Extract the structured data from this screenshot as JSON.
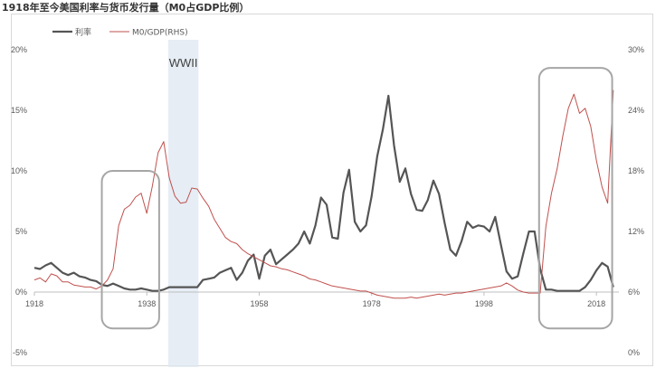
{
  "title": "1918年至今美国利率与货币发行量（M0占GDP比例）",
  "chart_data": {
    "type": "line",
    "title": "1918年至今美国利率与货币发行量（M0占GDP比例）",
    "legend": {
      "position": "top-left",
      "entries": [
        "利率",
        "M0/GDP(RHS)"
      ]
    },
    "x_ticks": [
      "1918",
      "1938",
      "1958",
      "1978",
      "1998",
      "2018"
    ],
    "xlim": [
      1918,
      2022
    ],
    "y_left": {
      "ticks": [
        "-5%",
        "0%",
        "5%",
        "10%",
        "15%",
        "20%"
      ],
      "ylim": [
        -5,
        20
      ],
      "unit": "%"
    },
    "y_right": {
      "ticks": [
        "0%",
        "6%",
        "12%",
        "18%",
        "24%",
        "30%"
      ],
      "ylim": [
        0,
        30
      ],
      "unit": "%"
    },
    "grid": false,
    "annotations": [
      {
        "type": "shaded_band",
        "label": "WWII",
        "x_range": [
          1941.8,
          1947.2
        ]
      },
      {
        "type": "rounded_box",
        "x_range": [
          1930,
          1940.2
        ],
        "y_range_left": [
          -3,
          10
        ]
      },
      {
        "type": "rounded_box",
        "x_range": [
          2007.8,
          2020.8
        ],
        "y_range_left": [
          -3,
          18.5
        ]
      }
    ],
    "series": [
      {
        "name": "利率",
        "axis": "left",
        "color": "#555555",
        "x": [
          1918,
          1919,
          1920,
          1921,
          1922,
          1923,
          1924,
          1925,
          1926,
          1927,
          1928,
          1929,
          1930,
          1931,
          1932,
          1933,
          1934,
          1935,
          1936,
          1937,
          1938,
          1939,
          1940,
          1941,
          1942,
          1943,
          1944,
          1945,
          1946,
          1947,
          1948,
          1949,
          1950,
          1951,
          1952,
          1953,
          1954,
          1955,
          1956,
          1957,
          1958,
          1959,
          1960,
          1961,
          1962,
          1963,
          1964,
          1965,
          1966,
          1967,
          1968,
          1969,
          1970,
          1971,
          1972,
          1973,
          1974,
          1975,
          1976,
          1977,
          1978,
          1979,
          1980,
          1981,
          1982,
          1983,
          1984,
          1985,
          1986,
          1987,
          1988,
          1989,
          1990,
          1991,
          1992,
          1993,
          1994,
          1995,
          1996,
          1997,
          1998,
          1999,
          2000,
          2001,
          2002,
          2003,
          2004,
          2005,
          2006,
          2007,
          2008,
          2009,
          2010,
          2011,
          2012,
          2013,
          2014,
          2015,
          2016,
          2017,
          2018,
          2019,
          2020,
          2021
        ],
        "values": [
          2.0,
          1.9,
          2.2,
          2.4,
          2.0,
          1.6,
          1.4,
          1.6,
          1.3,
          1.2,
          1.0,
          0.9,
          0.6,
          0.5,
          0.7,
          0.5,
          0.3,
          0.2,
          0.2,
          0.3,
          0.2,
          0.1,
          0.1,
          0.2,
          0.4,
          0.4,
          0.4,
          0.4,
          0.4,
          0.4,
          1.0,
          1.1,
          1.2,
          1.6,
          1.8,
          2.0,
          1.0,
          1.6,
          2.6,
          3.1,
          1.1,
          3.0,
          3.5,
          2.3,
          2.7,
          3.1,
          3.5,
          4.0,
          5.0,
          4.0,
          5.5,
          7.8,
          7.2,
          4.5,
          4.4,
          8.2,
          10.1,
          5.8,
          5.0,
          5.5,
          7.9,
          11.2,
          13.4,
          16.2,
          12.1,
          9.1,
          10.2,
          8.1,
          6.8,
          6.7,
          7.6,
          9.2,
          8.1,
          5.7,
          3.5,
          3.0,
          4.2,
          5.8,
          5.3,
          5.5,
          5.4,
          5.0,
          6.2,
          3.9,
          1.7,
          1.1,
          1.3,
          3.2,
          5.0,
          5.0,
          1.9,
          0.2,
          0.2,
          0.1,
          0.1,
          0.1,
          0.1,
          0.1,
          0.4,
          1.0,
          1.8,
          2.4,
          2.1,
          0.4
        ]
      },
      {
        "name": "M0/GDP(RHS)",
        "axis": "right",
        "color": "#c0504d",
        "x": [
          1918,
          1919,
          1920,
          1921,
          1922,
          1923,
          1924,
          1925,
          1926,
          1927,
          1928,
          1929,
          1930,
          1931,
          1932,
          1933,
          1934,
          1935,
          1936,
          1937,
          1938,
          1939,
          1940,
          1941,
          1942,
          1943,
          1944,
          1945,
          1946,
          1947,
          1948,
          1949,
          1950,
          1951,
          1952,
          1953,
          1954,
          1955,
          1956,
          1957,
          1958,
          1959,
          1960,
          1961,
          1962,
          1963,
          1964,
          1965,
          1966,
          1967,
          1968,
          1969,
          1970,
          1971,
          1972,
          1973,
          1974,
          1975,
          1976,
          1977,
          1978,
          1979,
          1980,
          1981,
          1982,
          1983,
          1984,
          1985,
          1986,
          1987,
          1988,
          1989,
          1990,
          1991,
          1992,
          1993,
          1994,
          1995,
          1996,
          1997,
          1998,
          1999,
          2000,
          2001,
          2002,
          2003,
          2004,
          2005,
          2006,
          2007,
          2008,
          2009,
          2010,
          2011,
          2012,
          2013,
          2014,
          2015,
          2016,
          2017,
          2018,
          2019,
          2020,
          2021
        ],
        "values": [
          7.2,
          7.4,
          7.0,
          7.8,
          7.6,
          7.0,
          7.0,
          6.7,
          6.6,
          6.5,
          6.5,
          6.3,
          6.6,
          7.2,
          8.3,
          12.6,
          14.2,
          14.6,
          15.4,
          15.8,
          13.8,
          16.5,
          19.8,
          20.9,
          17.3,
          15.5,
          14.8,
          14.9,
          16.3,
          16.2,
          15.3,
          14.5,
          13.2,
          12.3,
          11.4,
          11.0,
          10.8,
          10.2,
          9.8,
          9.5,
          9.2,
          8.9,
          8.6,
          8.5,
          8.3,
          8.2,
          8.0,
          7.8,
          7.6,
          7.3,
          7.2,
          7.0,
          6.8,
          6.6,
          6.5,
          6.4,
          6.3,
          6.2,
          6.1,
          6.1,
          5.9,
          5.7,
          5.6,
          5.5,
          5.4,
          5.4,
          5.4,
          5.5,
          5.4,
          5.5,
          5.6,
          5.7,
          5.8,
          5.7,
          5.8,
          5.9,
          5.9,
          6.0,
          6.1,
          6.2,
          6.3,
          6.4,
          6.5,
          6.6,
          6.9,
          6.6,
          6.2,
          6.0,
          5.9,
          5.9,
          5.9,
          12.5,
          15.8,
          18.2,
          21.4,
          24.2,
          25.6,
          23.7,
          24.2,
          22.4,
          19.0,
          16.4,
          14.8,
          26.0
        ]
      }
    ]
  }
}
